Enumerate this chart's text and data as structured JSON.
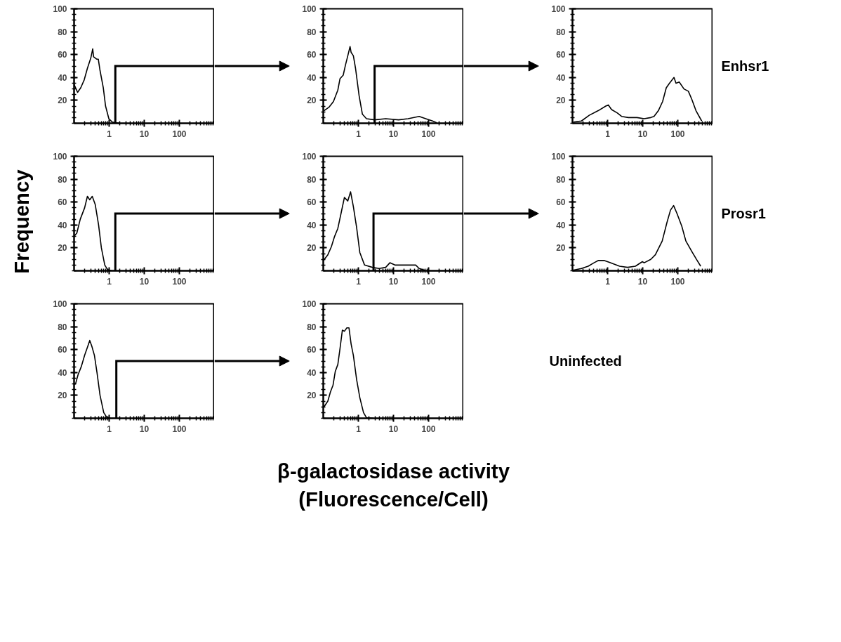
{
  "chart_data": [
    {
      "type": "line",
      "log": "x",
      "xlim": [
        0.1,
        1000
      ],
      "ylim": [
        0,
        100
      ],
      "xticks": [
        1,
        10,
        100
      ],
      "yticks": [
        20,
        40,
        60,
        80,
        100
      ],
      "ref_lines": [
        {
          "axis": "x",
          "value": 1.5
        }
      ],
      "series": [
        {
          "color": "#000000",
          "x": [
            0.1,
            0.126,
            0.155,
            0.195,
            0.24,
            0.3,
            0.34,
            0.36,
            0.44,
            0.49,
            0.55,
            0.68,
            0.79,
            0.98,
            1.23,
            1.55,
            2.0
          ],
          "values": [
            34,
            27,
            31,
            38,
            48,
            57,
            65,
            58,
            56,
            56,
            46,
            31,
            15,
            4,
            1,
            0.5,
            0
          ]
        }
      ]
    },
    {
      "type": "line",
      "log": "x",
      "xlim": [
        0.1,
        1000
      ],
      "ylim": [
        0,
        100
      ],
      "xticks": [
        1,
        10,
        100
      ],
      "yticks": [
        20,
        40,
        60,
        80,
        100
      ],
      "ref_lines": [
        {
          "axis": "x",
          "value": 2.9
        }
      ],
      "series": [
        {
          "color": "#000000",
          "x": [
            0.105,
            0.145,
            0.195,
            0.26,
            0.3,
            0.37,
            0.43,
            0.5,
            0.58,
            0.62,
            0.72,
            0.83,
            1.05,
            1.3,
            1.7,
            2.9,
            6.0,
            14,
            26,
            54,
            83,
            130,
            170
          ],
          "values": [
            11,
            14,
            19,
            29,
            39,
            42,
            51,
            59,
            67,
            62,
            59,
            48,
            24,
            8,
            4,
            3,
            4,
            3,
            4,
            6,
            4,
            2,
            0.5
          ]
        }
      ]
    },
    {
      "type": "line",
      "log": "x",
      "xlim": [
        0.1,
        1000
      ],
      "ylim": [
        0,
        100
      ],
      "xticks": [
        1,
        10,
        100
      ],
      "yticks": [
        20,
        40,
        60,
        80,
        100
      ],
      "annotations": [
        "Enhsr1"
      ],
      "series": [
        {
          "color": "#000000",
          "x": [
            0.107,
            0.18,
            0.3,
            0.54,
            0.89,
            1.05,
            1.3,
            1.9,
            2.5,
            3.9,
            6.9,
            11,
            17,
            21,
            28,
            37,
            47,
            58,
            78,
            89,
            110,
            150,
            200,
            250,
            330,
            480
          ],
          "values": [
            1,
            2,
            7,
            11,
            15,
            16,
            12,
            9,
            6,
            5,
            5,
            4,
            5,
            6,
            11,
            19,
            31,
            35,
            40,
            35,
            36,
            30,
            28,
            21,
            11,
            2
          ]
        }
      ]
    },
    {
      "type": "line",
      "log": "x",
      "xlim": [
        0.1,
        1000
      ],
      "ylim": [
        0,
        100
      ],
      "xticks": [
        1,
        10,
        100
      ],
      "yticks": [
        20,
        40,
        60,
        80,
        100
      ],
      "ref_lines": [
        {
          "axis": "x",
          "value": 1.5
        }
      ],
      "ylabel": "Frequency",
      "series": [
        {
          "color": "#000000",
          "x": [
            0.1,
            0.12,
            0.15,
            0.2,
            0.24,
            0.28,
            0.33,
            0.4,
            0.5,
            0.6,
            0.75,
            0.9,
            1.2,
            1.6
          ],
          "values": [
            30,
            33,
            45,
            55,
            65,
            62,
            65,
            58,
            40,
            20,
            5,
            1,
            0,
            0
          ]
        }
      ]
    },
    {
      "type": "line",
      "log": "x",
      "xlim": [
        0.1,
        1000
      ],
      "ylim": [
        0,
        100
      ],
      "xticks": [
        1,
        10,
        100
      ],
      "yticks": [
        20,
        40,
        60,
        80,
        100
      ],
      "ref_lines": [
        {
          "axis": "x",
          "value": 2.7
        }
      ],
      "series": [
        {
          "color": "#000000",
          "x": [
            0.102,
            0.135,
            0.17,
            0.21,
            0.26,
            0.32,
            0.4,
            0.5,
            0.6,
            0.72,
            0.89,
            1.1,
            1.5,
            2.5,
            3.9,
            6.0,
            7.9,
            11,
            17,
            30,
            43,
            54,
            78
          ],
          "values": [
            9,
            14,
            21,
            30,
            37,
            50,
            64,
            61,
            69,
            56,
            38,
            16,
            5,
            3,
            2,
            3,
            7,
            5,
            5,
            5,
            5,
            2,
            0.5
          ]
        }
      ]
    },
    {
      "type": "line",
      "log": "x",
      "xlim": [
        0.1,
        1000
      ],
      "ylim": [
        0,
        100
      ],
      "xticks": [
        1,
        10,
        100
      ],
      "yticks": [
        20,
        40,
        60,
        80,
        100
      ],
      "annotations": [
        "Prosr1"
      ],
      "series": [
        {
          "color": "#000000",
          "x": [
            0.102,
            0.18,
            0.28,
            0.41,
            0.55,
            0.79,
            1.2,
            2.2,
            3.7,
            6.2,
            9.8,
            11,
            17,
            23,
            36,
            49,
            62,
            76,
            95,
            130,
            170,
            250,
            340,
            450
          ],
          "values": [
            0.5,
            2,
            4,
            7,
            9,
            9,
            7,
            4,
            3,
            4,
            8,
            7,
            10,
            14,
            26,
            42,
            53,
            57,
            50,
            39,
            26,
            17,
            10,
            4
          ]
        }
      ]
    },
    {
      "type": "line",
      "log": "x",
      "xlim": [
        0.1,
        1000
      ],
      "ylim": [
        0,
        100
      ],
      "xticks": [
        1,
        10,
        100
      ],
      "yticks": [
        20,
        40,
        60,
        80,
        100
      ],
      "ref_lines": [
        {
          "axis": "x",
          "value": 1.6
        }
      ],
      "series": [
        {
          "color": "#000000",
          "x": [
            0.1,
            0.11,
            0.13,
            0.16,
            0.2,
            0.24,
            0.28,
            0.32,
            0.38,
            0.45,
            0.55,
            0.7,
            0.85,
            1.1,
            1.7
          ],
          "values": [
            30,
            30,
            38,
            45,
            55,
            62,
            68,
            63,
            55,
            40,
            20,
            5,
            1,
            0,
            0
          ]
        }
      ]
    },
    {
      "type": "line",
      "log": "x",
      "xlim": [
        0.1,
        1000
      ],
      "ylim": [
        0,
        100
      ],
      "xticks": [
        1,
        10,
        100
      ],
      "yticks": [
        20,
        40,
        60,
        80,
        100
      ],
      "annotations": [
        "Uninfected"
      ],
      "xlabel": "β-galactosidase activity\n(Fluorescence/Cell)",
      "series": [
        {
          "color": "#000000",
          "x": [
            0.105,
            0.135,
            0.16,
            0.19,
            0.22,
            0.26,
            0.3,
            0.35,
            0.4,
            0.47,
            0.54,
            0.62,
            0.72,
            0.89,
            1.1,
            1.4,
            1.7,
            2.7
          ],
          "values": [
            10,
            15,
            23,
            29,
            41,
            47,
            61,
            77,
            76,
            79,
            79,
            65,
            55,
            34,
            18,
            5,
            0.5,
            0
          ]
        }
      ]
    }
  ]
}
